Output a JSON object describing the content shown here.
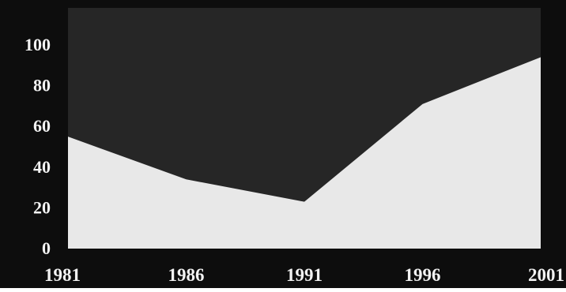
{
  "chart_data": {
    "type": "area",
    "title": "",
    "xlabel": "",
    "ylabel": "",
    "x": [
      "1981",
      "1986",
      "1991",
      "1996",
      "2001"
    ],
    "values": [
      55,
      34,
      23,
      71,
      94
    ],
    "ylim": [
      0,
      100
    ],
    "yticks": [
      "0",
      "20",
      "40",
      "60",
      "80",
      "100"
    ],
    "grid": false,
    "legend": "none",
    "colors": {
      "background": "#0d0d0d",
      "plot_background": "#262626",
      "area_fill": "#e8e8e8",
      "tick_text": "#f2f2f2"
    }
  }
}
